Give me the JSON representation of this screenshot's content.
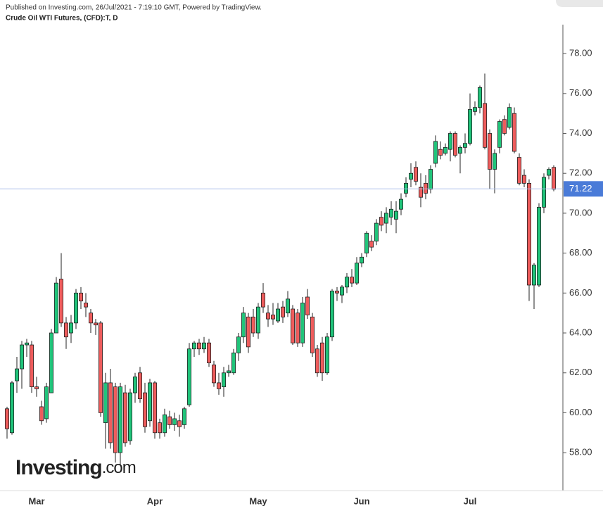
{
  "header": {
    "published": "Published on Investing.com, 26/Jul/2021 - 7:19:10 GMT, Powered by TradingView.",
    "instrument": "Crude Oil WTI Futures, (CFD):T, D"
  },
  "logo": {
    "name": "Investing",
    "suffix": ".com"
  },
  "chart_data": {
    "type": "candlestick",
    "up_color": "#20c47a",
    "down_color": "#ee5c5c",
    "last_price_color": "#4a7bd8",
    "categories": [
      null,
      null,
      null,
      null,
      null,
      null,
      "Mar",
      null,
      null,
      null,
      null,
      null,
      null,
      null,
      null,
      null,
      null,
      null,
      null,
      null,
      null,
      null,
      null,
      null,
      null,
      null,
      null,
      null,
      null,
      null,
      "Apr",
      null,
      null,
      null,
      null,
      null,
      null,
      null,
      null,
      null,
      null,
      null,
      null,
      null,
      null,
      null,
      null,
      null,
      null,
      null,
      null,
      "May",
      null,
      null,
      null,
      null,
      null,
      null,
      null,
      null,
      null,
      null,
      null,
      null,
      null,
      null,
      null,
      null,
      null,
      null,
      null,
      null,
      "Jun",
      null,
      null,
      null,
      null,
      null,
      null,
      null,
      null,
      null,
      null,
      null,
      null,
      null,
      null,
      null,
      null,
      null,
      null,
      null,
      null,
      null,
      "Jul",
      null,
      null,
      null,
      null,
      null,
      null,
      null,
      null,
      null,
      null,
      null,
      null,
      null,
      null,
      null,
      null,
      null
    ],
    "open": [
      60.2,
      59.0,
      61.6,
      62.2,
      63.4,
      63.4,
      61.3,
      60.3,
      59.7,
      61.0,
      64.0,
      66.7,
      64.5,
      64.0,
      64.5,
      66.0,
      65.5,
      65.0,
      64.5,
      64.5,
      59.5,
      61.5,
      61.3,
      58.0,
      61.0,
      58.6,
      61.0,
      62.0,
      61.0,
      59.6,
      61.5,
      59.5,
      59.0,
      59.8,
      59.4,
      59.6,
      59.4,
      60.4,
      63.2,
      63.5,
      63.2,
      63.5,
      62.4,
      61.5,
      61.3,
      62.0,
      62.0,
      63.0,
      63.8,
      64.8,
      64.8,
      64.0,
      66.0,
      65.0,
      64.9,
      64.6,
      65.3,
      65.0,
      65.2,
      65.0,
      63.5,
      65.8,
      64.8,
      63.2,
      63.5,
      62.0,
      63.8,
      66.1,
      65.9,
      66.3,
      66.8,
      66.5,
      67.5,
      68.0,
      68.6,
      68.6,
      69.8,
      69.5,
      69.8,
      69.7,
      70.2,
      71.0,
      71.7,
      72.3,
      71.3,
      71.5,
      71.2,
      72.5,
      73.2,
      73.0,
      73.2,
      74.0,
      73.0,
      73.3,
      73.5,
      75.1,
      75.3,
      75.5,
      74.0,
      72.2,
      73.3,
      74.7,
      74.3,
      75.0,
      72.8,
      71.9,
      71.5,
      66.4,
      66.4,
      70.3,
      71.9,
      72.3
    ],
    "high": [
      60.3,
      61.6,
      62.8,
      63.6,
      63.7,
      63.6,
      61.8,
      60.6,
      61.5,
      64.2,
      66.8,
      68.0,
      64.8,
      64.9,
      66.2,
      66.3,
      66.0,
      65.2,
      64.7,
      64.6,
      62.0,
      62.2,
      61.5,
      61.5,
      61.4,
      61.2,
      62.0,
      62.3,
      61.5,
      61.7,
      61.6,
      59.7,
      60.2,
      60.1,
      60.0,
      59.9,
      60.3,
      63.5,
      63.6,
      63.7,
      63.8,
      63.7,
      62.6,
      62.0,
      62.3,
      62.4,
      63.2,
      64.0,
      65.3,
      65.0,
      65.2,
      65.5,
      66.5,
      65.4,
      65.5,
      65.5,
      65.6,
      66.1,
      65.4,
      65.2,
      65.8,
      66.2,
      65.0,
      63.4,
      63.8,
      64.0,
      66.2,
      66.3,
      66.4,
      67.0,
      67.2,
      67.8,
      68.0,
      69.1,
      68.9,
      69.7,
      70.1,
      70.3,
      70.6,
      70.6,
      71.0,
      71.8,
      72.5,
      72.6,
      72.0,
      71.9,
      72.4,
      73.9,
      73.6,
      73.5,
      74.1,
      74.1,
      73.4,
      74.0,
      76.0,
      75.6,
      76.4,
      77.0,
      74.2,
      73.2,
      74.7,
      74.9,
      75.5,
      75.3,
      73.0,
      72.2,
      71.7,
      67.5,
      70.5,
      72.0,
      72.3,
      72.4
    ],
    "low": [
      58.7,
      58.9,
      61.0,
      61.2,
      62.8,
      61.0,
      60.8,
      59.4,
      59.5,
      61.0,
      64.0,
      64.3,
      63.2,
      63.5,
      64.2,
      65.2,
      64.8,
      64.0,
      63.9,
      59.8,
      58.2,
      58.2,
      57.5,
      57.4,
      58.3,
      58.4,
      60.5,
      60.5,
      59.0,
      59.3,
      58.7,
      58.7,
      58.8,
      59.2,
      59.1,
      58.8,
      59.2,
      60.3,
      62.8,
      62.9,
      63.0,
      62.3,
      61.3,
      60.9,
      60.8,
      61.8,
      61.9,
      62.6,
      63.5,
      63.0,
      63.8,
      63.7,
      65.0,
      64.3,
      64.4,
      64.5,
      64.5,
      64.8,
      63.4,
      63.3,
      63.3,
      64.7,
      62.8,
      61.8,
      61.6,
      61.9,
      63.6,
      65.6,
      65.5,
      66.0,
      66.3,
      66.4,
      67.3,
      67.8,
      68.1,
      68.4,
      69.1,
      69.0,
      69.4,
      69.0,
      69.9,
      70.8,
      71.3,
      71.4,
      70.3,
      70.7,
      71.0,
      72.3,
      72.7,
      72.9,
      72.6,
      72.8,
      72.0,
      73.0,
      73.4,
      74.9,
      75.0,
      73.2,
      71.2,
      71.0,
      73.0,
      73.9,
      74.2,
      73.0,
      71.4,
      71.3,
      65.6,
      65.2,
      66.3,
      70.0,
      71.7,
      71.1
    ],
    "close": [
      59.2,
      61.5,
      62.2,
      63.4,
      63.5,
      61.3,
      61.2,
      59.6,
      61.3,
      64.0,
      66.5,
      64.5,
      63.8,
      64.5,
      66.0,
      65.6,
      65.3,
      64.5,
      64.4,
      60.0,
      61.5,
      58.5,
      58.0,
      61.3,
      58.5,
      61.0,
      61.8,
      60.7,
      59.3,
      61.5,
      59.0,
      59.0,
      59.9,
      59.4,
      59.7,
      59.3,
      60.2,
      63.2,
      63.5,
      63.2,
      63.5,
      62.5,
      61.5,
      61.2,
      62.0,
      62.1,
      63.0,
      63.8,
      65.0,
      63.3,
      64.0,
      65.3,
      65.3,
      64.7,
      64.7,
      65.2,
      64.8,
      65.7,
      63.5,
      63.5,
      65.5,
      64.9,
      63.0,
      62.0,
      62.0,
      63.8,
      66.1,
      66.0,
      66.3,
      66.8,
      66.5,
      67.5,
      67.8,
      69.0,
      68.3,
      69.5,
      69.4,
      70.0,
      70.2,
      70.1,
      70.7,
      71.5,
      72.0,
      71.6,
      70.8,
      71.0,
      72.2,
      73.6,
      72.9,
      73.3,
      74.0,
      72.9,
      73.3,
      73.5,
      75.2,
      75.3,
      76.3,
      73.3,
      72.2,
      73.0,
      74.6,
      74.0,
      75.3,
      73.1,
      71.5,
      71.5,
      66.4,
      67.4,
      70.3,
      71.8,
      72.2,
      71.2
    ],
    "last_price": 71.22,
    "ylim": [
      56.1,
      79.45
    ],
    "yticks": [
      {
        "value": 58,
        "label": "58.00"
      },
      {
        "value": 60,
        "label": "60.00"
      },
      {
        "value": 62,
        "label": "62.00"
      },
      {
        "value": 64,
        "label": "64.00"
      },
      {
        "value": 66,
        "label": "66.00"
      },
      {
        "value": 68,
        "label": "68.00"
      },
      {
        "value": 70,
        "label": "70.00"
      },
      {
        "value": 72,
        "label": "72.00"
      },
      {
        "value": 74,
        "label": "74.00"
      },
      {
        "value": 76,
        "label": "76.00"
      },
      {
        "value": 78,
        "label": "78.00"
      }
    ]
  }
}
